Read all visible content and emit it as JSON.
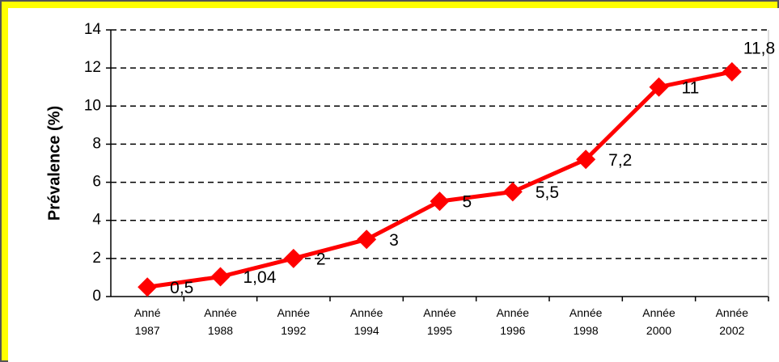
{
  "chart_data": {
    "type": "line",
    "y_label": "Prévalence (%)",
    "categories": [
      "Anné 1987",
      "Année 1988",
      "Année 1992",
      "Année 1994",
      "Année 1995",
      "Année 1996",
      "Année 1998",
      "Année 2000",
      "Année 2002"
    ],
    "series": [
      {
        "name": "Prévalence",
        "color": "#ff0000",
        "values": [
          0.5,
          1.04,
          2,
          3,
          5,
          5.5,
          7.2,
          11,
          11.8
        ],
        "value_labels": [
          "0,5",
          "1,04",
          "2",
          "3",
          "5",
          "5,5",
          "7,2",
          "11",
          "11,8"
        ]
      }
    ],
    "ylim": [
      0,
      14
    ],
    "yticks": [
      0,
      2,
      4,
      6,
      8,
      10,
      12,
      14
    ],
    "grid": true
  }
}
